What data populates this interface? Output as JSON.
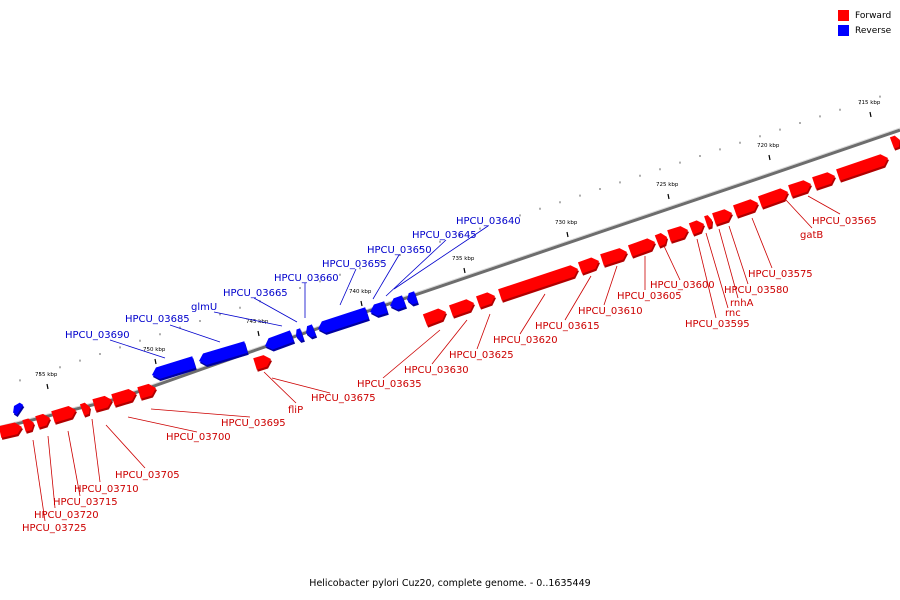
{
  "caption": "Helicobacter pylori Cuz20, complete genome. - 0..1635449",
  "legend": [
    {
      "label": "Forward",
      "color": "#ff0000"
    },
    {
      "label": "Reverse",
      "color": "#0000ff"
    }
  ],
  "colors": {
    "forward": "#ff0000",
    "reverse": "#0000ff",
    "backbone": "#888888"
  },
  "scale_labels": [
    "715 kbp",
    "720 kbp",
    "725 kbp",
    "730 kbp",
    "735 kbp",
    "740 kbp",
    "745 kbp",
    "750 kbp",
    "755 kbp"
  ],
  "forward_genes": [
    "HPCU_03565",
    "gatB",
    "HPCU_03575",
    "HPCU_03580",
    "rnhA",
    "rnc",
    "HPCU_03595",
    "HPCU_03600",
    "HPCU_03605",
    "HPCU_03610",
    "HPCU_03615",
    "HPCU_03620",
    "HPCU_03625",
    "HPCU_03630",
    "HPCU_03635",
    "fliP",
    "HPCU_03675",
    "HPCU_03695",
    "HPCU_03700",
    "HPCU_03705",
    "HPCU_03710",
    "HPCU_03715",
    "HPCU_03720",
    "HPCU_03725"
  ],
  "reverse_genes": [
    "HPCU_03640",
    "HPCU_03645",
    "HPCU_03650",
    "HPCU_03655",
    "HPCU_03660",
    "HPCU_03665",
    "glmU",
    "HPCU_03685",
    "HPCU_03690"
  ]
}
